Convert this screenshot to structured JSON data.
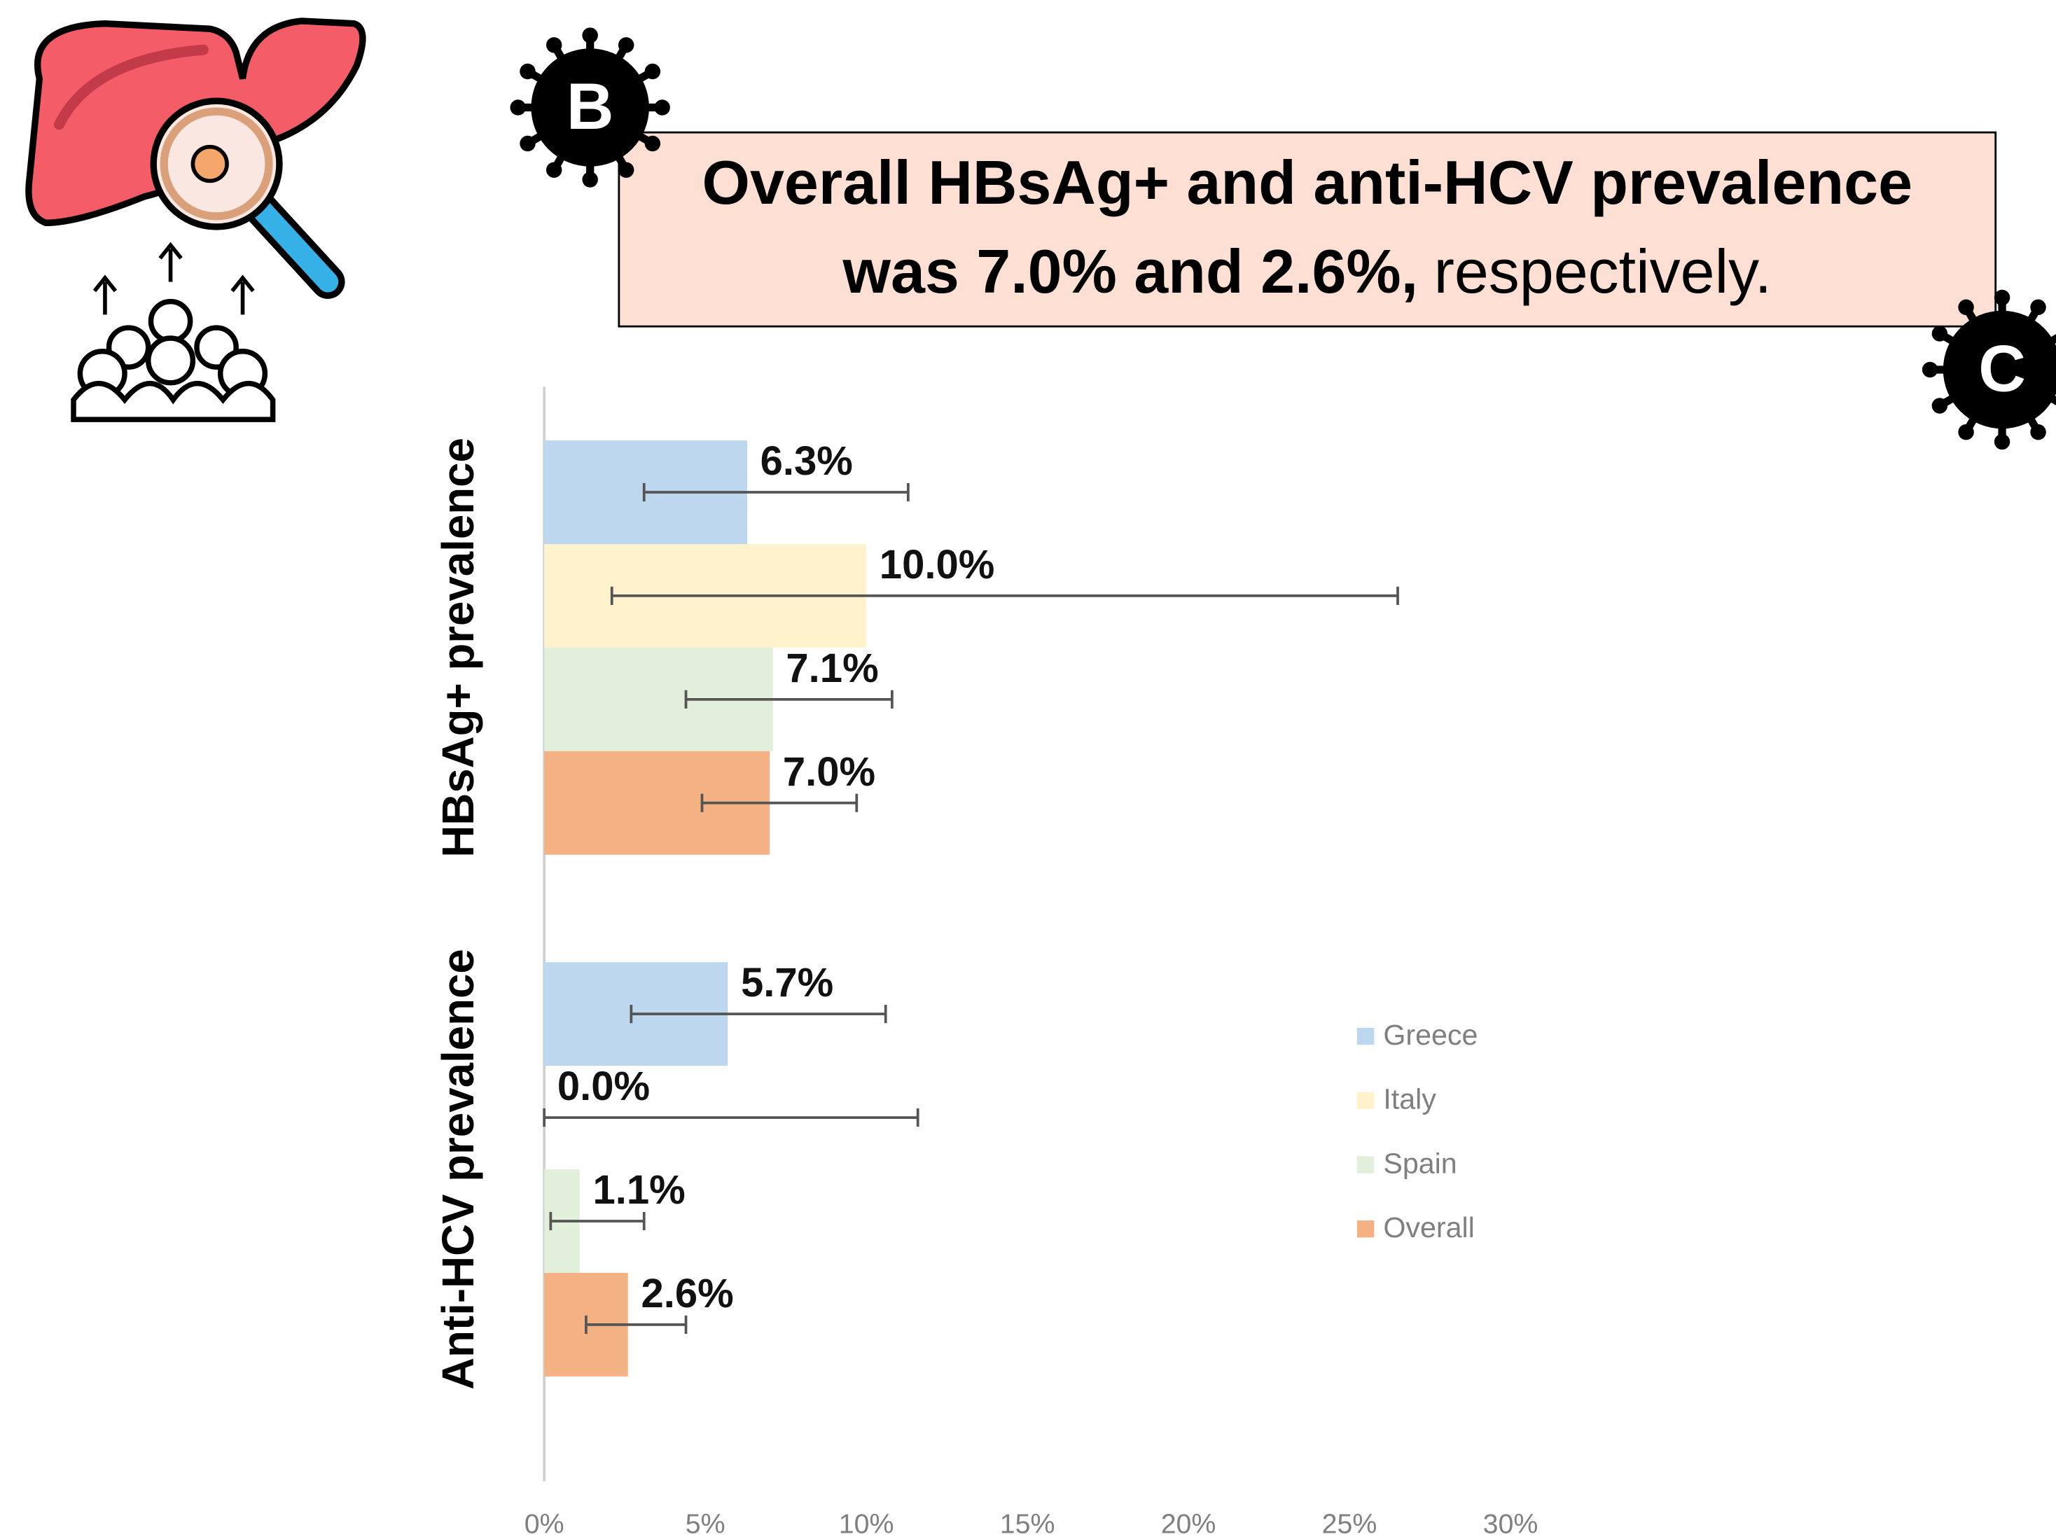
{
  "chart_data": {
    "type": "bar",
    "orientation": "horizontal",
    "headline": [
      "Overall HBsAg+ and anti-HCV prevalence",
      "was 7.0% and 2.6%,",
      "respectively."
    ],
    "badges": [
      "B",
      "C"
    ],
    "categories": [
      "HBsAg+ prevalence",
      "Anti-HCV prevalence"
    ],
    "series": [
      {
        "name": "Greece",
        "color": "#bdd7ee",
        "values": [
          6.3,
          5.7
        ],
        "value_labels": [
          "6.3%",
          "5.7%"
        ],
        "ci_low": [
          3.1,
          2.7
        ],
        "ci_high": [
          11.3,
          10.6
        ]
      },
      {
        "name": "Italy",
        "color": "#fff2cc",
        "values": [
          10.0,
          0.0
        ],
        "value_labels": [
          "10.0%",
          "0.0%"
        ],
        "ci_low": [
          2.1,
          0.0
        ],
        "ci_high": [
          26.5,
          11.6
        ]
      },
      {
        "name": "Spain",
        "color": "#e2efda",
        "values": [
          7.1,
          1.1
        ],
        "value_labels": [
          "7.1%",
          "1.1%"
        ],
        "ci_low": [
          4.4,
          0.2
        ],
        "ci_high": [
          10.8,
          3.1
        ]
      },
      {
        "name": "Overall",
        "color": "#f4b183",
        "values": [
          7.0,
          2.6
        ],
        "value_labels": [
          "7.0%",
          "2.6%"
        ],
        "ci_low": [
          4.9,
          1.3
        ],
        "ci_high": [
          9.7,
          4.4
        ]
      }
    ],
    "xlim": [
      0,
      30
    ],
    "xticks": [
      {
        "value": 0,
        "label": "0%"
      },
      {
        "value": 5,
        "label": "5%"
      },
      {
        "value": 10,
        "label": "10%"
      },
      {
        "value": 15,
        "label": "15%"
      },
      {
        "value": 20,
        "label": "20%"
      },
      {
        "value": 25,
        "label": "25%"
      },
      {
        "value": 30,
        "label": "30%"
      }
    ],
    "legend": "right"
  }
}
